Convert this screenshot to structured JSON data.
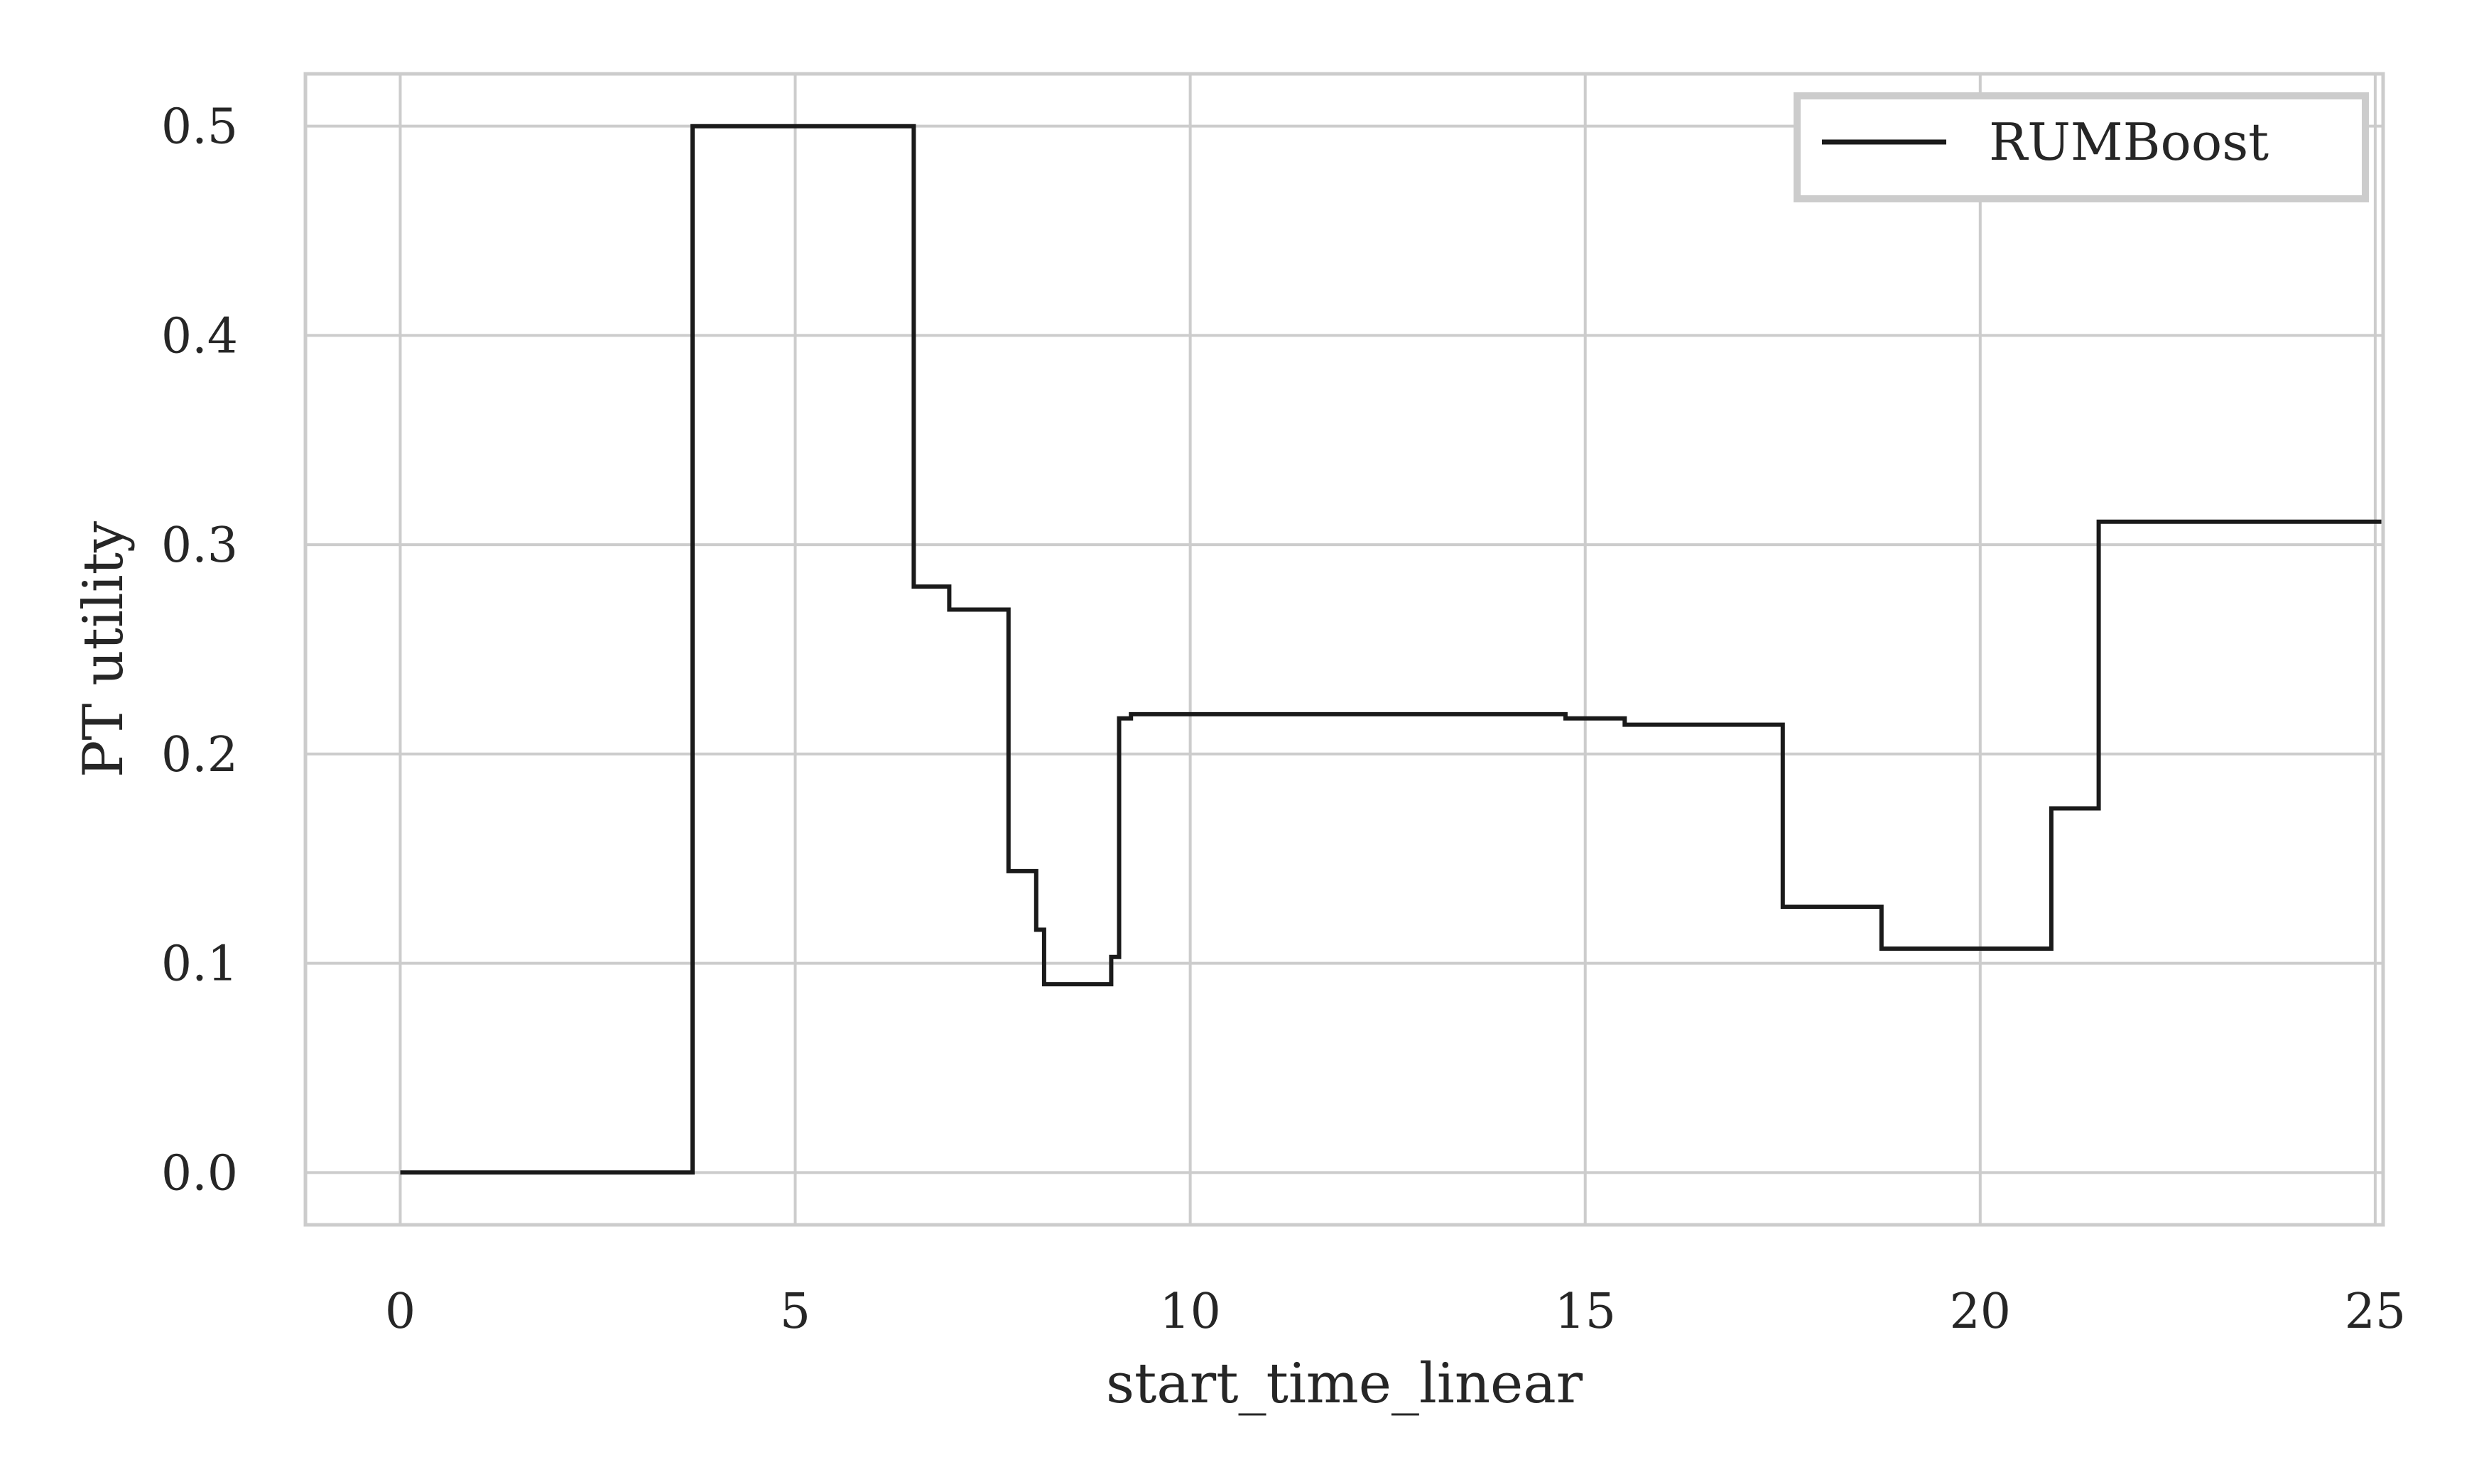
{
  "chart_data": {
    "type": "line",
    "line_style": "step",
    "title": "",
    "xlabel": "start_time_linear",
    "ylabel": "PT utility",
    "xlim": [
      -1.2,
      25.1
    ],
    "ylim": [
      -0.025,
      0.525
    ],
    "xticks": [
      0,
      5,
      10,
      15,
      20,
      25
    ],
    "yticks": [
      0.0,
      0.1,
      0.2,
      0.3,
      0.4,
      0.5
    ],
    "xtick_labels": [
      "0",
      "5",
      "10",
      "15",
      "20",
      "25"
    ],
    "ytick_labels": [
      "0.0",
      "0.1",
      "0.2",
      "0.3",
      "0.4",
      "0.5"
    ],
    "grid": true,
    "legend_position": "top-right",
    "series": [
      {
        "name": "RUMBoost",
        "color": "#1a1a1a",
        "x": [
          0,
          3.7,
          3.7,
          6.5,
          6.5,
          6.95,
          6.95,
          7.7,
          7.7,
          8.05,
          8.05,
          8.15,
          8.15,
          9.0,
          9.0,
          9.1,
          9.1,
          9.25,
          9.25,
          14.75,
          14.75,
          15.5,
          15.5,
          17.5,
          17.5,
          18.75,
          18.75,
          20.9,
          20.9,
          21.5,
          21.5,
          25.1
        ],
        "y": [
          0.0,
          0.0,
          0.5,
          0.5,
          0.28,
          0.28,
          0.269,
          0.269,
          0.144,
          0.144,
          0.116,
          0.116,
          0.09,
          0.09,
          0.103,
          0.103,
          0.217,
          0.217,
          0.219,
          0.219,
          0.217,
          0.217,
          0.214,
          0.214,
          0.127,
          0.127,
          0.107,
          0.107,
          0.174,
          0.174,
          0.311,
          0.311
        ]
      }
    ]
  }
}
